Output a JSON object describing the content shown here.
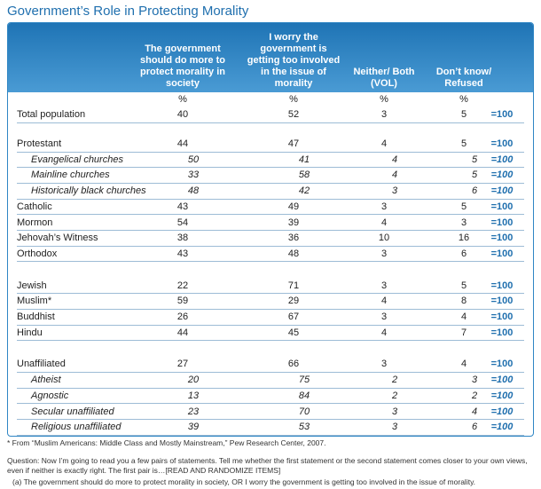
{
  "title": "Government’s Role in Protecting Morality",
  "table": {
    "headers": [
      "The government should do more to protect morality in society",
      "I worry the government is getting too involved in the issue of morality",
      "Neither/ Both (VOL)",
      "Don’t know/ Refused"
    ],
    "units": [
      "%",
      "%",
      "%",
      "%"
    ],
    "groups": [
      {
        "rows": [
          {
            "label": "Total population",
            "values": [
              40,
              52,
              3,
              5
            ],
            "total": "=100"
          }
        ]
      },
      {
        "rows": [
          {
            "label": "Protestant",
            "values": [
              44,
              47,
              4,
              5
            ],
            "total": "=100",
            "subrows": [
              {
                "label": "Evangelical churches",
                "values": [
                  50,
                  41,
                  4,
                  5
                ],
                "total": "=100"
              },
              {
                "label": "Mainline churches",
                "values": [
                  33,
                  58,
                  4,
                  5
                ],
                "total": "=100"
              },
              {
                "label": "Historically black churches",
                "values": [
                  48,
                  42,
                  3,
                  6
                ],
                "total": "=100"
              }
            ]
          },
          {
            "label": "Catholic",
            "values": [
              43,
              49,
              3,
              5
            ],
            "total": "=100"
          },
          {
            "label": "Mormon",
            "values": [
              54,
              39,
              4,
              3
            ],
            "total": "=100"
          },
          {
            "label": "Jehovah’s Witness",
            "values": [
              38,
              36,
              10,
              16
            ],
            "total": "=100"
          },
          {
            "label": "Orthodox",
            "values": [
              43,
              48,
              3,
              6
            ],
            "total": "=100"
          }
        ]
      },
      {
        "rows": [
          {
            "label": "Jewish",
            "values": [
              22,
              71,
              3,
              5
            ],
            "total": "=100"
          },
          {
            "label": "Muslim*",
            "values": [
              59,
              29,
              4,
              8
            ],
            "total": "=100"
          },
          {
            "label": "Buddhist",
            "values": [
              26,
              67,
              3,
              4
            ],
            "total": "=100"
          },
          {
            "label": "Hindu",
            "values": [
              44,
              45,
              4,
              7
            ],
            "total": "=100"
          }
        ]
      },
      {
        "rows": [
          {
            "label": "Unaffiliated",
            "values": [
              27,
              66,
              3,
              4
            ],
            "total": "=100",
            "subrows": [
              {
                "label": "Atheist",
                "values": [
                  20,
                  75,
                  2,
                  3
                ],
                "total": "=100"
              },
              {
                "label": "Agnostic",
                "values": [
                  13,
                  84,
                  2,
                  2
                ],
                "total": "=100"
              },
              {
                "label": "Secular unaffiliated",
                "values": [
                  23,
                  70,
                  3,
                  4
                ],
                "total": "=100"
              },
              {
                "label": "Religious unaffiliated",
                "values": [
                  39,
                  53,
                  3,
                  6
                ],
                "total": "=100"
              }
            ]
          }
        ]
      }
    ]
  },
  "notes": [
    "* From “Muslim Americans: Middle Class and Mostly Mainstream,” Pew Research Center, 2007.",
    "Question: Now I’m going to read you a few pairs of statements. Tell me whether the first statement or the second statement comes closer to your own views, even if neither is exactly right. The first pair is…[READ AND RANDOMIZE ITEMS]",
    "(a) The government should do more to protect morality in society, OR I worry the government is getting too involved in the issue of morality."
  ]
}
